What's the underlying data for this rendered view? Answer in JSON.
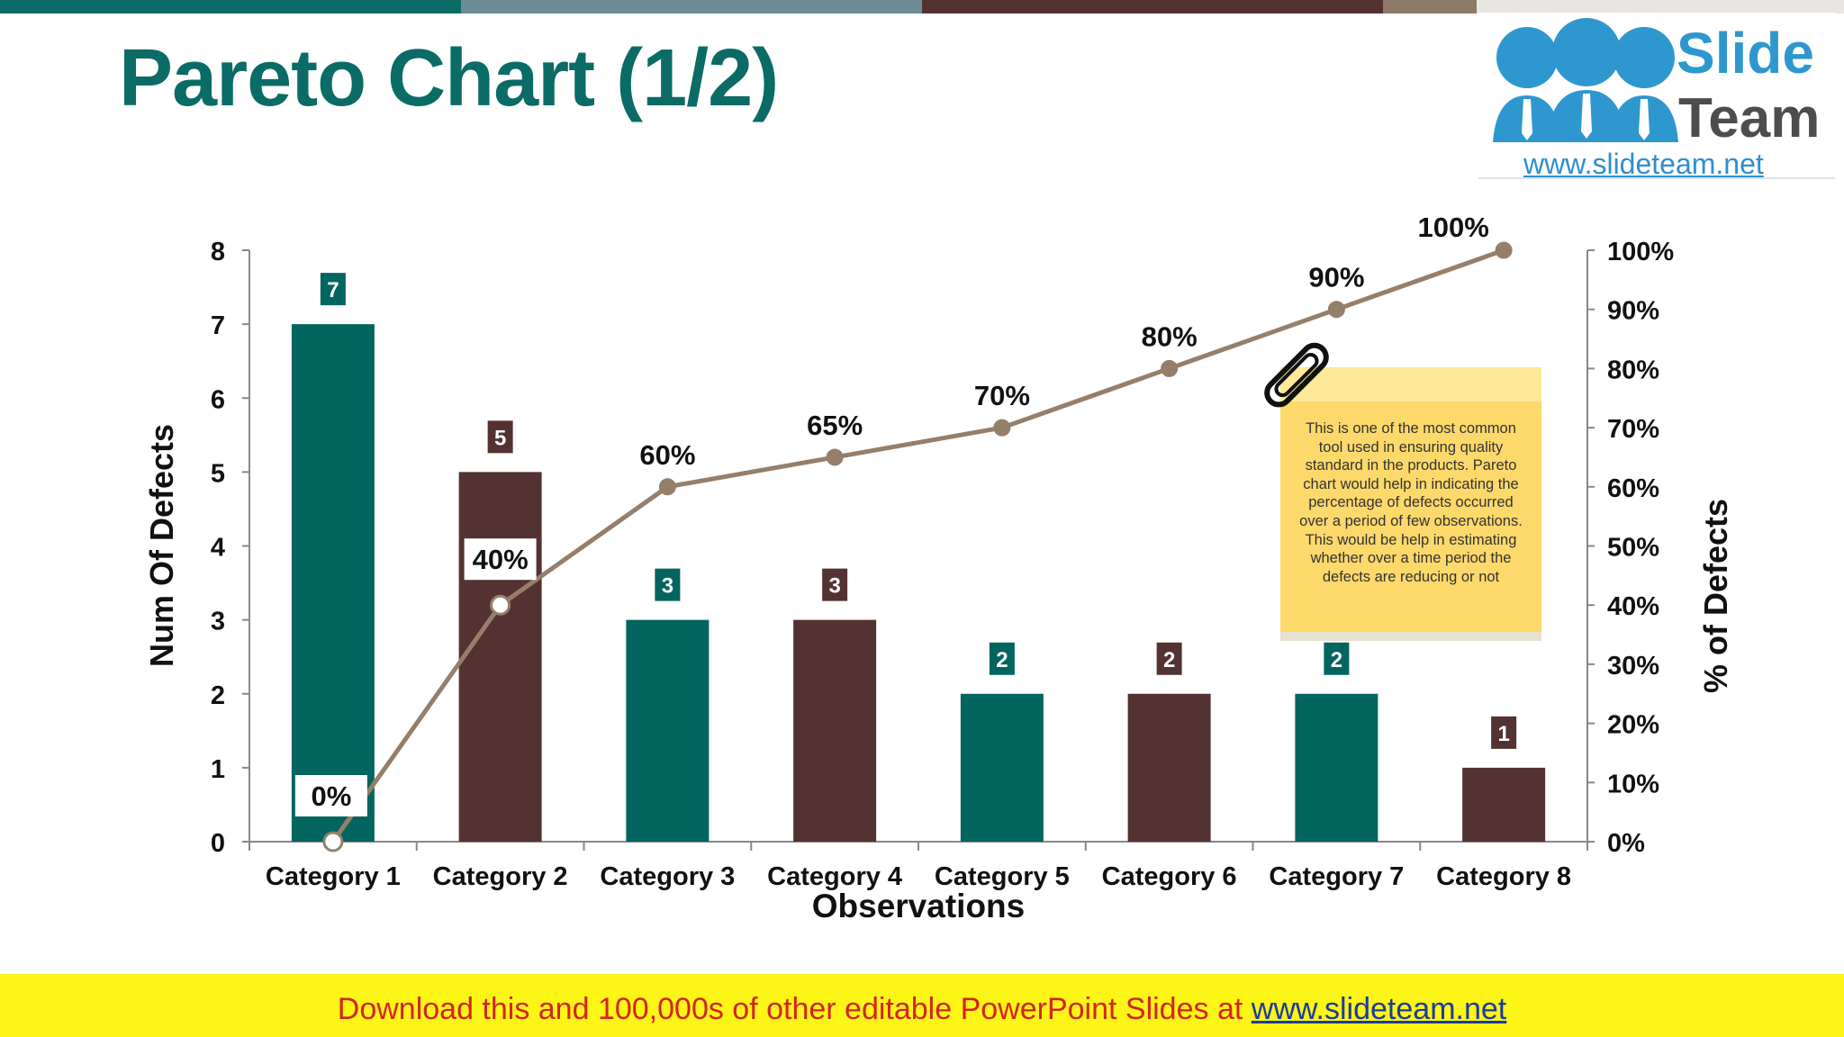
{
  "slide": {
    "title": "Pareto Chart (1/2)",
    "top_bar_colors": [
      "#0b6b66",
      "#6e8c97",
      "#543232",
      "#8e7a68",
      "#e9e6e2"
    ]
  },
  "logo": {
    "name_line1": "Slide",
    "name_line2": "Team",
    "url": "www.slideteam.net",
    "icon": "people-group-icon"
  },
  "note": {
    "text": "This is one of the most common tool used in ensuring quality standard in the products. Pareto chart would help in indicating the percentage of defects occurred over a period of few observations. This would be help in estimating whether over a time period the defects are reducing or not",
    "clip_icon": "paperclip-icon"
  },
  "footer": {
    "text": "Download this and 100,000s of other editable PowerPoint Slides at ",
    "link": "www.slideteam.net"
  },
  "chart_data": {
    "type": "bar",
    "categories": [
      "Category 1",
      "Category 2",
      "Category 3",
      "Category 4",
      "Category 5",
      "Category 6",
      "Category 7",
      "Category 8"
    ],
    "series": [
      {
        "values": [
          7,
          5,
          3,
          3,
          2,
          2,
          2,
          1
        ]
      },
      {
        "type": "line",
        "axis": "right",
        "values": [
          0,
          40,
          60,
          65,
          70,
          80,
          90,
          100
        ]
      }
    ],
    "bar_data_labels": [
      "7",
      "5",
      "3",
      "3",
      "2",
      "2",
      "2",
      "1"
    ],
    "line_data_labels": [
      "0%",
      "40%",
      "60%",
      "65%",
      "70%",
      "80%",
      "90%",
      "100%"
    ],
    "xlabel": "Observations",
    "ylabel": "Num Of Defects",
    "y2label": "% of Defects",
    "ylim": [
      0,
      8
    ],
    "y_ticks": [
      "0",
      "1",
      "2",
      "3",
      "4",
      "5",
      "6",
      "7",
      "8"
    ],
    "y2lim": [
      0,
      100
    ],
    "y2_ticks": [
      "0%",
      "10%",
      "20%",
      "30%",
      "40%",
      "50%",
      "60%",
      "70%",
      "80%",
      "90%",
      "100%"
    ],
    "grid": false,
    "colors": {
      "bar_teal": "#03655f",
      "bar_brown": "#543232",
      "line": "#957f6b",
      "axis": "#888888"
    }
  }
}
